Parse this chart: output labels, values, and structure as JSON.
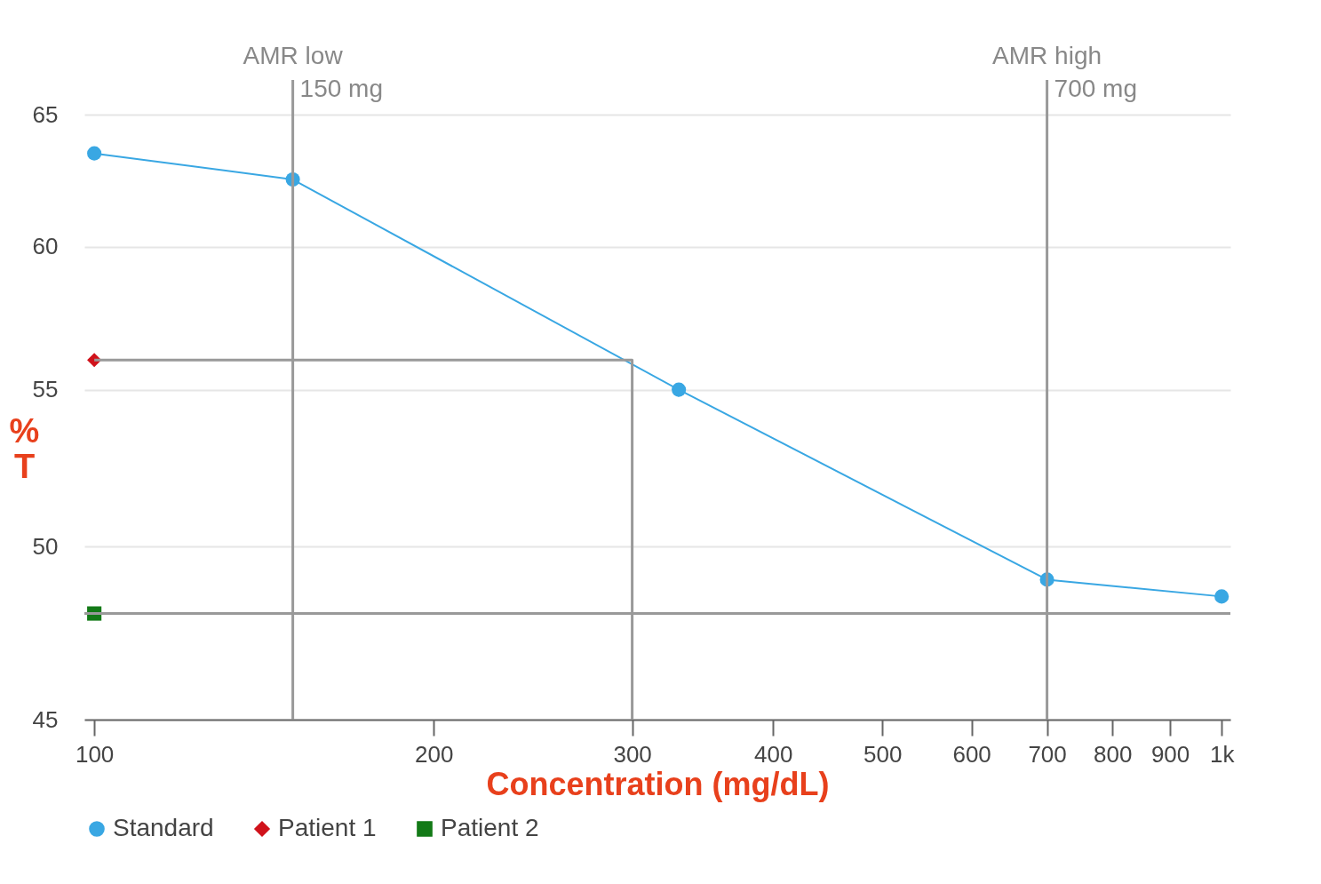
{
  "chart_data": {
    "type": "line",
    "xlabel": "Concentration (mg/dL)",
    "ylabel": "% T",
    "log": "xy",
    "xlim": [
      98,
      1018
    ],
    "ylim": [
      45,
      66.4
    ],
    "xticks": [
      100,
      200,
      300,
      400,
      500,
      600,
      700,
      800,
      900,
      {
        "value": 1000,
        "label": "1k"
      }
    ],
    "yticks": [
      45,
      50,
      55,
      60,
      65
    ],
    "grid": "y",
    "legend": "bottom",
    "series": [
      {
        "name": "Standard",
        "color": "#39a7e3",
        "marker": "circle",
        "x": [
          100,
          150,
          330,
          700,
          1000
        ],
        "values": [
          63.5,
          62.5,
          55,
          49,
          48.5
        ]
      },
      {
        "name": "Patient 1",
        "type": "scatter",
        "color": "#d0121b",
        "marker": "diamond",
        "x": [
          100
        ],
        "values": [
          56
        ]
      },
      {
        "name": "Patient 2",
        "type": "scatter",
        "color": "#137a17",
        "marker": "square",
        "x": [
          100
        ],
        "values": [
          48
        ]
      },
      {
        "color": "#999999",
        "marker": "none",
        "x": [
          100,
          300,
          300
        ],
        "values": [
          56,
          56,
          45
        ]
      }
    ],
    "ref_lines": [
      {
        "axis": "x",
        "value": 150,
        "label": "AMR low",
        "color": "#999999"
      },
      {
        "axis": "x",
        "value": 700,
        "label": "AMR high",
        "color": "#999999"
      },
      {
        "axis": "y",
        "value": 48,
        "color": "#999999"
      }
    ],
    "annotations": [
      {
        "text": "150 mg",
        "x": 150,
        "y": 66
      },
      {
        "text": "700 mg",
        "x": 700,
        "y": 66
      }
    ]
  }
}
